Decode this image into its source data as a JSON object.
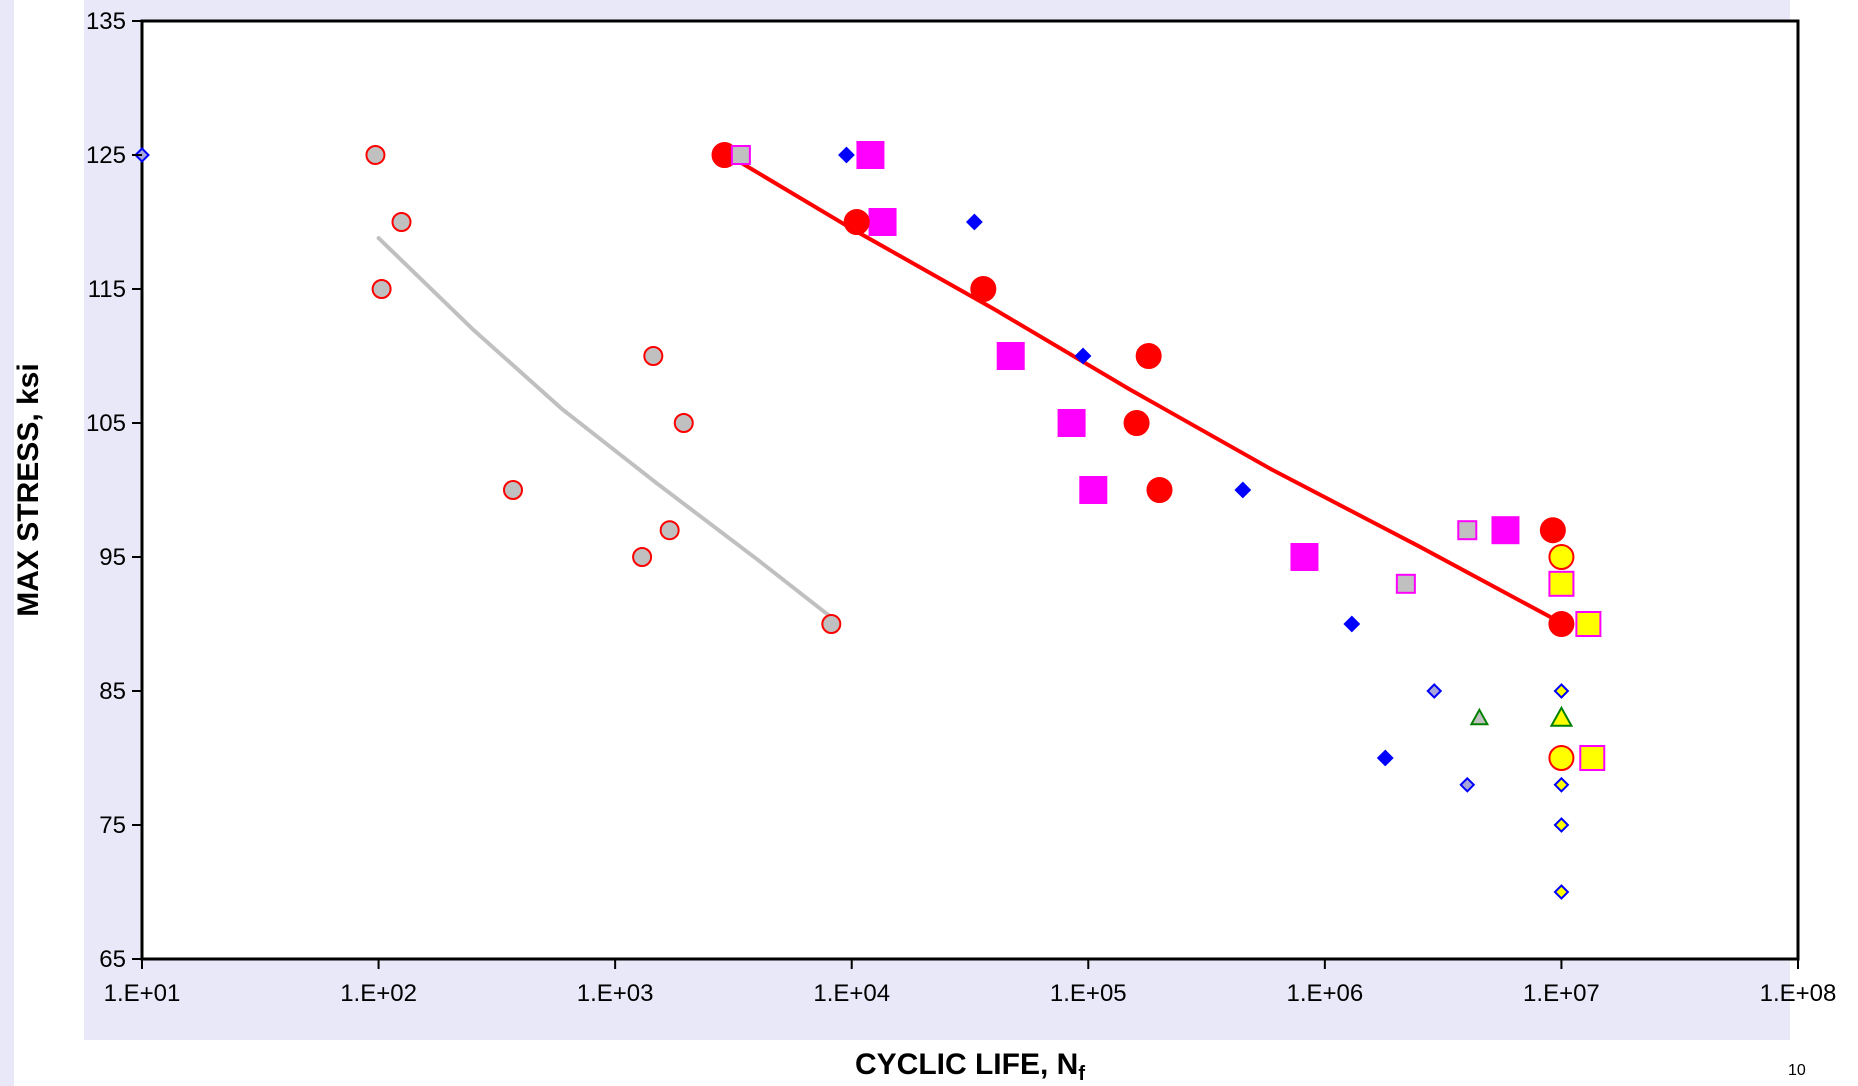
{
  "slide": {
    "page_number": "10"
  },
  "chart_data": {
    "type": "scatter",
    "xlabel": "CYCLIC LIFE, N",
    "xlabel_subscript": "f",
    "ylabel": "MAX STRESS, ksi",
    "x_scale": "log",
    "xlim": [
      10,
      100000000
    ],
    "ylim": [
      65,
      135
    ],
    "xticks": [
      10,
      100,
      1000,
      10000,
      100000,
      1000000,
      10000000,
      100000000
    ],
    "xtick_labels": [
      "1.E+01",
      "1.E+02",
      "1.E+03",
      "1.E+04",
      "1.E+05",
      "1.E+06",
      "1.E+07",
      "1.E+08"
    ],
    "yticks": [
      65,
      75,
      85,
      95,
      105,
      115,
      125,
      135
    ],
    "ytick_labels": [
      "65",
      "75",
      "85",
      "95",
      "105",
      "115",
      "125",
      "135"
    ],
    "grid": false,
    "legend": "none",
    "series": [
      {
        "marker": "diamond",
        "size": 14,
        "fill": "#0000ff",
        "stroke": "#0000ff",
        "points": [
          [
            9500,
            125
          ],
          [
            33000,
            120
          ],
          [
            95000,
            110
          ],
          [
            450000,
            100
          ],
          [
            1300000,
            90
          ],
          [
            1800000,
            80
          ]
        ]
      },
      {
        "marker": "square",
        "size": 26,
        "fill": "#ff00ff",
        "stroke": "#ff00ff",
        "points": [
          [
            12000,
            125
          ],
          [
            13500,
            120
          ],
          [
            47000,
            110
          ],
          [
            85000,
            105
          ],
          [
            105000,
            100
          ],
          [
            820000,
            95
          ],
          [
            5800000,
            97
          ]
        ]
      },
      {
        "marker": "circle",
        "size": 24,
        "fill": "#ff0000",
        "stroke": "#ff0000",
        "points": [
          [
            2900,
            125
          ],
          [
            10500,
            120
          ],
          [
            36000,
            115
          ],
          [
            180000,
            110
          ],
          [
            160000,
            105
          ],
          [
            200000,
            100
          ],
          [
            9200000,
            97
          ],
          [
            10000000,
            90
          ]
        ]
      },
      {
        "marker": "circle",
        "size": 18,
        "fill": "#c0c0c0",
        "stroke": "#ff0000",
        "points": [
          [
            97,
            125
          ],
          [
            125,
            120
          ],
          [
            103,
            115
          ],
          [
            1450,
            110
          ],
          [
            1950,
            105
          ],
          [
            370,
            100
          ],
          [
            1700,
            97
          ],
          [
            1300,
            95
          ],
          [
            8200,
            90
          ]
        ]
      },
      {
        "marker": "square",
        "size": 18,
        "fill": "#c0c0c0",
        "stroke": "#ff00ff",
        "points": [
          [
            3400,
            125
          ],
          [
            4000000,
            97
          ],
          [
            2200000,
            93
          ]
        ]
      },
      {
        "marker": "diamond",
        "size": 13,
        "fill": "#a6a6d8",
        "stroke": "#0000ff",
        "points": [
          [
            10,
            125
          ],
          [
            2900000,
            85
          ],
          [
            4000000,
            78
          ]
        ]
      },
      {
        "marker": "circle",
        "size": 24,
        "fill": "#ffff00",
        "stroke": "#ff0000",
        "points": [
          [
            10000000,
            95
          ],
          [
            10000000,
            80
          ]
        ]
      },
      {
        "marker": "square",
        "size": 24,
        "fill": "#ffff00",
        "stroke": "#ff00ff",
        "points": [
          [
            10000000,
            93
          ],
          [
            13000000,
            90
          ],
          [
            13500000,
            80
          ]
        ]
      },
      {
        "marker": "diamond",
        "size": 13,
        "fill": "#ffff00",
        "stroke": "#0000ff",
        "points": [
          [
            10000000,
            85
          ],
          [
            10000000,
            78
          ],
          [
            10000000,
            75
          ],
          [
            10000000,
            70
          ]
        ]
      },
      {
        "marker": "triangle",
        "size": 20,
        "fill": "#ffff00",
        "stroke": "#008000",
        "points": [
          [
            10000000,
            83
          ]
        ]
      },
      {
        "marker": "triangle",
        "size": 16,
        "fill": "#c0c0c0",
        "stroke": "#008000",
        "points": [
          [
            4500000,
            83
          ]
        ]
      }
    ],
    "trendlines": [
      {
        "color": "#c0c0c0",
        "width": 4,
        "points": [
          [
            100,
            118.8
          ],
          [
            250,
            112
          ],
          [
            600,
            106
          ],
          [
            1500,
            100.5
          ],
          [
            4000,
            94.8
          ],
          [
            8200,
            90.5
          ]
        ]
      },
      {
        "color": "#ff0000",
        "width": 4,
        "points": [
          [
            3000,
            125
          ],
          [
            10000,
            119.5
          ],
          [
            40000,
            113.5
          ],
          [
            150000,
            107.5
          ],
          [
            600000,
            101.5
          ],
          [
            2500000,
            95.8
          ],
          [
            9700000,
            90.2
          ]
        ]
      }
    ]
  }
}
